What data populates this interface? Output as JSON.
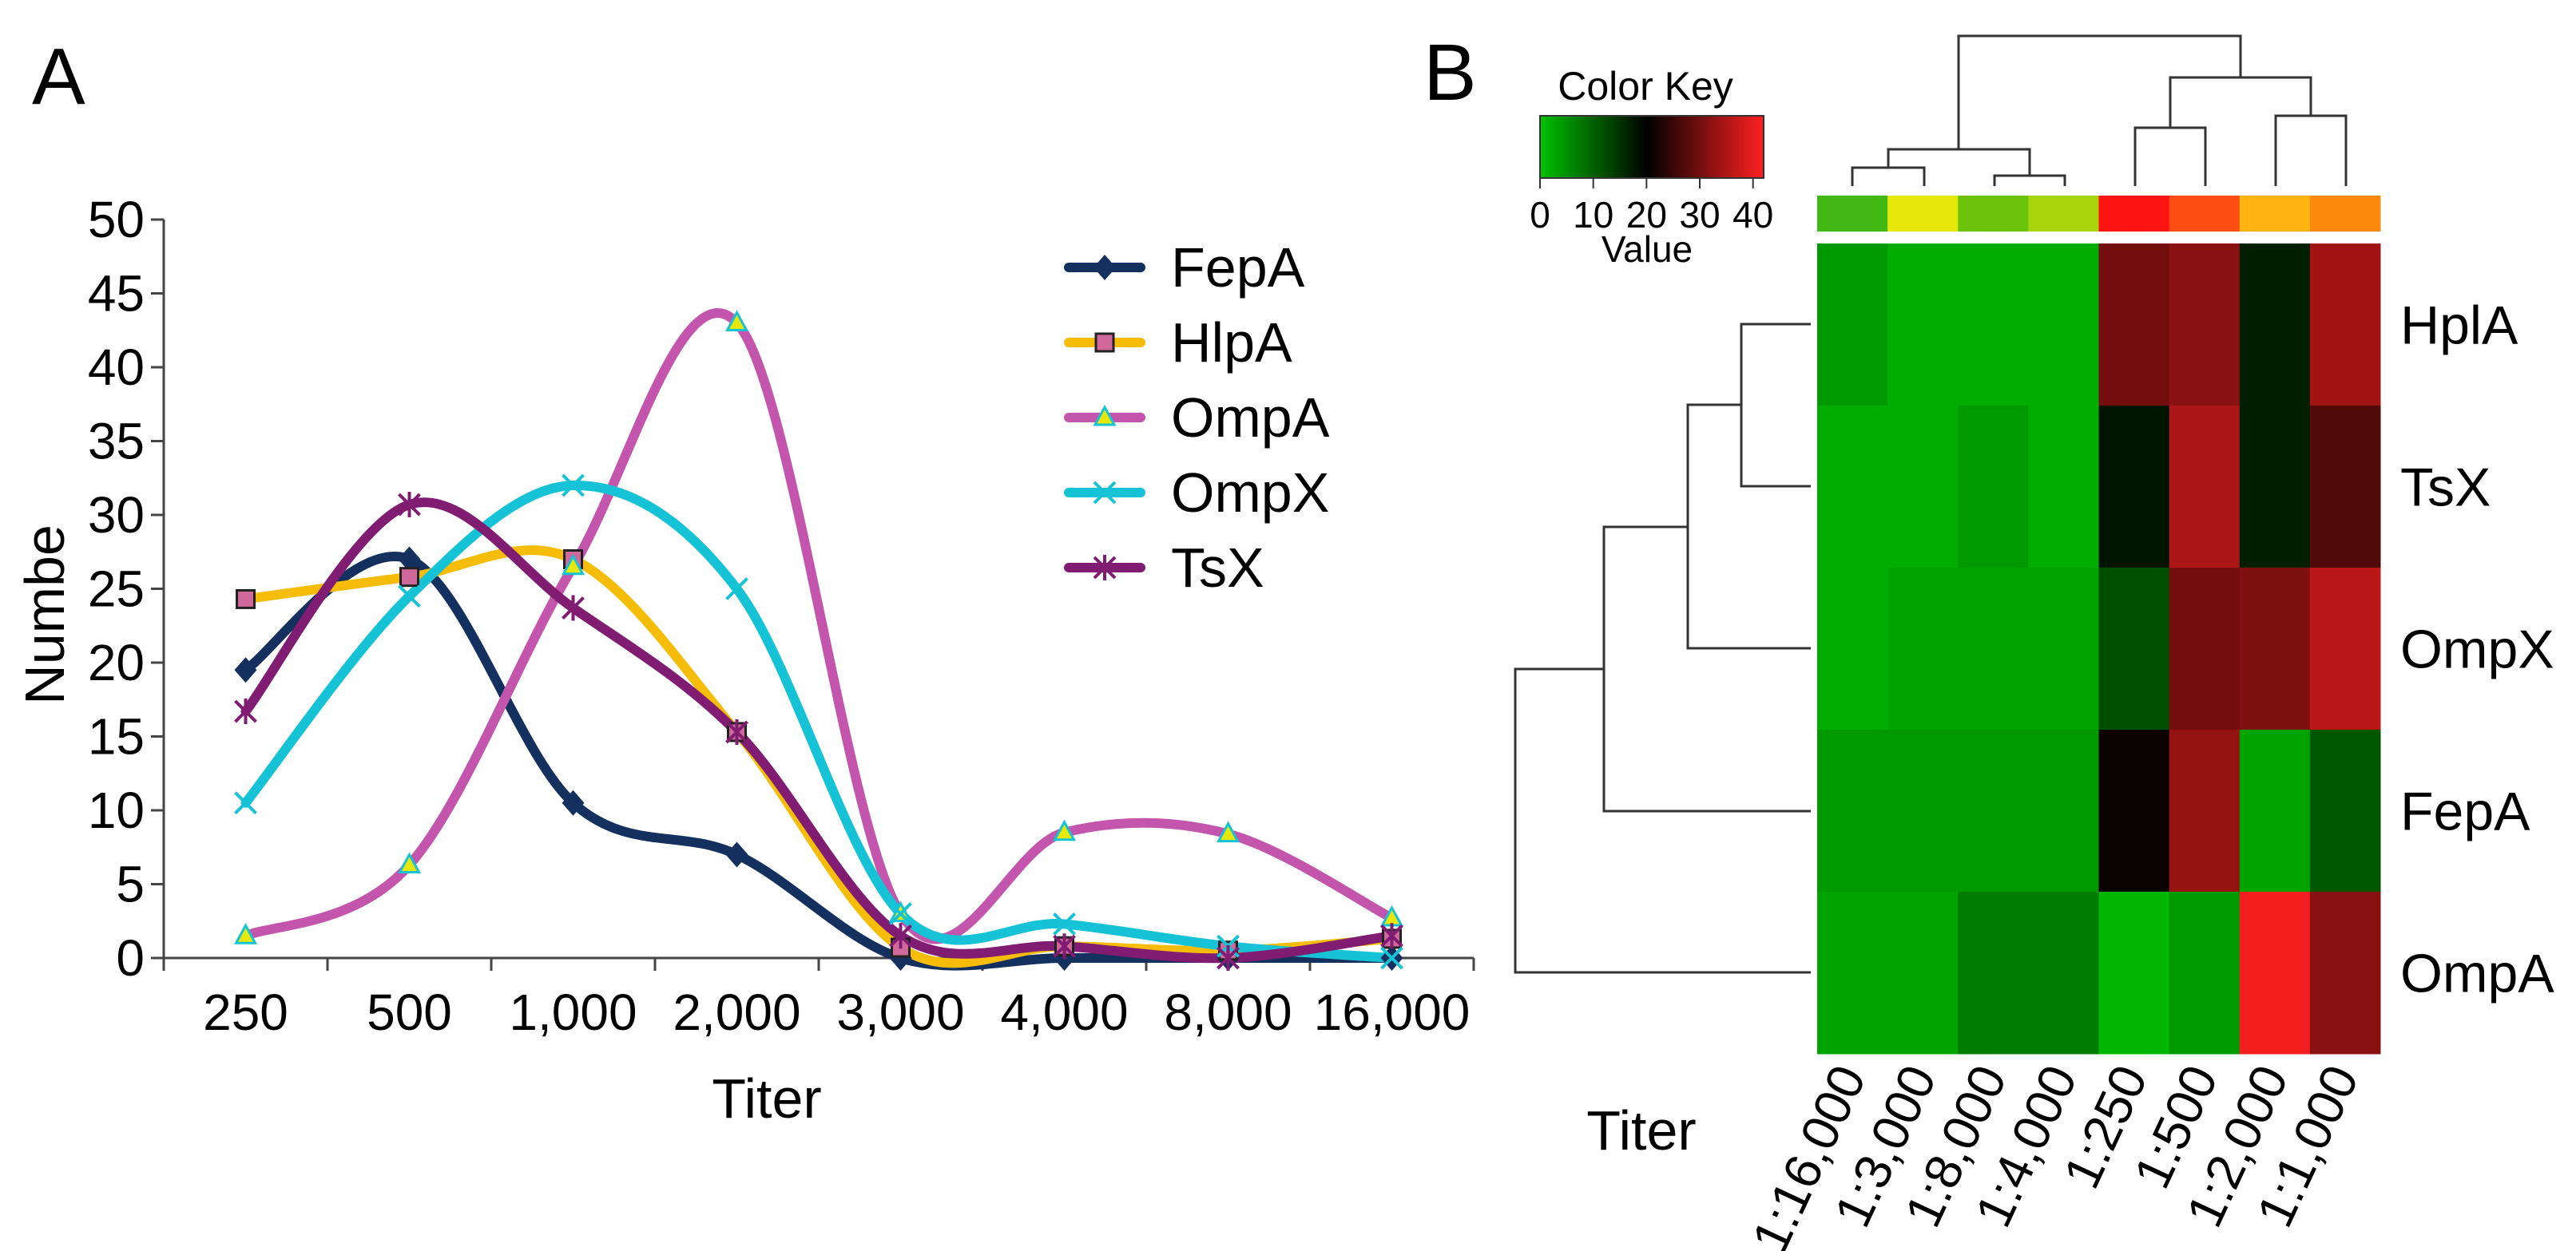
{
  "panels": {
    "a_label": "A",
    "b_label": "B"
  },
  "chart_data": [
    {
      "type": "line",
      "panel": "A",
      "title": "",
      "xlabel": "Titer",
      "ylabel": "Numbe",
      "categories": [
        "250",
        "500",
        "1,000",
        "2,000",
        "3,000",
        "4,000",
        "8,000",
        "16,000"
      ],
      "ylim": [
        0,
        50
      ],
      "yticks": [
        "0",
        "5",
        "10",
        "15",
        "20",
        "25",
        "30",
        "35",
        "40",
        "45",
        "50"
      ],
      "grid": false,
      "legend_position": "top-right",
      "series": [
        {
          "name": "FepA",
          "color": "#13305f",
          "marker": "diamond",
          "values": [
            19.5,
            27,
            10.5,
            7,
            0,
            0,
            0,
            0
          ]
        },
        {
          "name": "HlpA",
          "color": "#f5bd07",
          "marker": "square",
          "values": [
            24.3,
            25.8,
            27,
            15.3,
            0.7,
            0.8,
            0.5,
            1.3
          ]
        },
        {
          "name": "OmpA",
          "color": "#c455ac",
          "marker": "triangle",
          "values": [
            1.5,
            6.3,
            26.5,
            43,
            3,
            8.5,
            8.4,
            2.7
          ]
        },
        {
          "name": "OmpX",
          "color": "#16c3d6",
          "marker": "x",
          "values": [
            10.5,
            24.5,
            32,
            25,
            3,
            2.3,
            0.8,
            0
          ]
        },
        {
          "name": "TsX",
          "color": "#811c73",
          "marker": "star",
          "values": [
            16.7,
            30.7,
            23.7,
            15.3,
            1.5,
            0.8,
            0,
            1.5
          ]
        }
      ]
    },
    {
      "type": "heatmap",
      "panel": "B",
      "xlabel": "Titer",
      "row_labels": [
        "HplA",
        "TsX",
        "OmpX",
        "FepA",
        "OmpA"
      ],
      "col_labels": [
        "1:16,000",
        "1:3,000",
        "1:8,000",
        "1:4,000",
        "1:250",
        "1:500",
        "1:2,000",
        "1:1,000"
      ],
      "col_colorbar": [
        "#40b712",
        "#e5e80a",
        "#6cc20a",
        "#a8d40c",
        "#fe1313",
        "#fc4d12",
        "#fdb312",
        "#fd8a0c"
      ],
      "values": [
        [
          4,
          2,
          2,
          2,
          30,
          32,
          17,
          34
        ],
        [
          2,
          2,
          4,
          2,
          18,
          35,
          17,
          27
        ],
        [
          2,
          3,
          3,
          3,
          12,
          30,
          31,
          36
        ],
        [
          4,
          4,
          4,
          4,
          21,
          33,
          3,
          11
        ],
        [
          3,
          3,
          7,
          7,
          1,
          4,
          41,
          32
        ]
      ],
      "color_key": {
        "title": "Color Key",
        "xlabel": "Value",
        "ticks": [
          "0",
          "10",
          "20",
          "30",
          "40"
        ],
        "range": [
          0,
          42
        ],
        "low_color": "#00c000",
        "mid_color": "#000000",
        "high_color": "#ff2020"
      }
    }
  ]
}
